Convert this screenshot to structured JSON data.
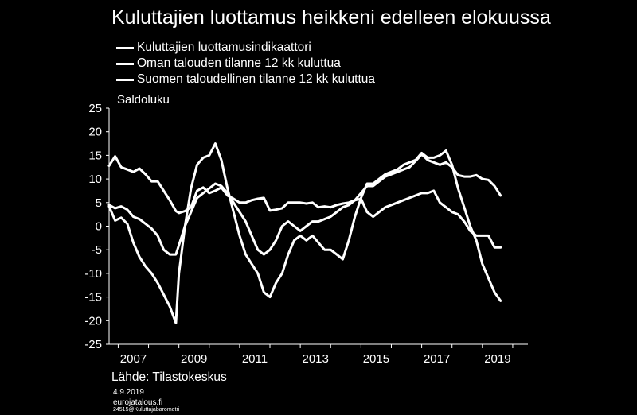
{
  "header": {
    "title": "Kuluttajien luottamus heikkeni edelleen elokuussa"
  },
  "footer": {
    "source": "Lähde: Tilastokeskus",
    "date": "4.9.2019",
    "site": "eurojatalous.fi",
    "code": "24515@Kuluttajabarometri"
  },
  "chart_data": {
    "type": "line",
    "title": "Kuluttajien luottamus heikkeni edelleen elokuussa",
    "ylabel": "Saldoluku",
    "xlabel": "",
    "ylim": [
      -25,
      25
    ],
    "xlim": [
      2006.7,
      2020.5
    ],
    "yticks": [
      "25",
      "20",
      "15",
      "10",
      "5",
      "0",
      "-5",
      "-10",
      "-15",
      "-20",
      "-25"
    ],
    "xticks": [
      "2007",
      "2009",
      "2011",
      "2013",
      "2015",
      "2017",
      "2019"
    ],
    "grid": false,
    "legend_position": "top-left",
    "series": [
      {
        "name": "Kuluttajien luottamusindikaattori",
        "x": [
          2006.7,
          2006.9,
          2007.1,
          2007.3,
          2007.5,
          2007.7,
          2007.9,
          2008.1,
          2008.3,
          2008.5,
          2008.7,
          2008.9,
          2009.0,
          2009.2,
          2009.4,
          2009.6,
          2009.8,
          2010.0,
          2010.2,
          2010.4,
          2010.6,
          2010.8,
          2011.0,
          2011.2,
          2011.4,
          2011.6,
          2011.8,
          2012.0,
          2012.2,
          2012.4,
          2012.6,
          2012.8,
          2013.0,
          2013.2,
          2013.4,
          2013.6,
          2013.8,
          2014.0,
          2014.2,
          2014.4,
          2014.6,
          2014.8,
          2015.0,
          2015.2,
          2015.4,
          2015.6,
          2015.8,
          2016.0,
          2016.2,
          2016.4,
          2016.6,
          2016.8,
          2017.0,
          2017.2,
          2017.4,
          2017.6,
          2017.8,
          2018.0,
          2018.2,
          2018.4,
          2018.6,
          2018.8,
          2019.0,
          2019.2,
          2019.4,
          2019.6
        ],
        "values": [
          12.8,
          14.8,
          12.5,
          12,
          11.5,
          12.2,
          11,
          9.5,
          9.5,
          7.5,
          5.5,
          3.2,
          2.8,
          3.2,
          4,
          7.5,
          8.2,
          7,
          7.5,
          8.2,
          6.5,
          5.8,
          5,
          5,
          5.5,
          5.8,
          6,
          3.3,
          3.5,
          3.8,
          5,
          5,
          5,
          4.8,
          5,
          4,
          4.2,
          4,
          4.5,
          4.8,
          5,
          5.5,
          7,
          8.5,
          8.5,
          9.5,
          10.5,
          11,
          11.5,
          12,
          12.5,
          13.8,
          15.2,
          14,
          13.5,
          13,
          13.5,
          12.5,
          10.8,
          10.5,
          10.5,
          10.8,
          10,
          9.8,
          8.5,
          6.5
        ]
      },
      {
        "name": "Oman talouden tilanne 12 kk kuluttua",
        "x": [
          2006.7,
          2006.9,
          2007.1,
          2007.3,
          2007.5,
          2007.7,
          2007.9,
          2008.1,
          2008.3,
          2008.5,
          2008.7,
          2008.9,
          2009.0,
          2009.2,
          2009.4,
          2009.6,
          2009.8,
          2010.0,
          2010.2,
          2010.4,
          2010.6,
          2010.8,
          2011.0,
          2011.2,
          2011.4,
          2011.6,
          2011.8,
          2012.0,
          2012.2,
          2012.4,
          2012.6,
          2012.8,
          2013.0,
          2013.2,
          2013.4,
          2013.6,
          2013.8,
          2014.0,
          2014.2,
          2014.4,
          2014.6,
          2014.8,
          2015.0,
          2015.2,
          2015.4,
          2015.6,
          2015.8,
          2016.0,
          2016.2,
          2016.4,
          2016.6,
          2016.8,
          2017.0,
          2017.2,
          2017.4,
          2017.6,
          2017.8,
          2018.0,
          2018.2,
          2018.4,
          2018.6,
          2018.8,
          2019.0,
          2019.2,
          2019.4,
          2019.6
        ],
        "values": [
          4.5,
          3.8,
          4.2,
          3.5,
          2,
          1.5,
          0.5,
          -0.5,
          -2,
          -5,
          -6,
          -6,
          -4,
          0,
          3,
          6,
          7,
          8,
          9,
          8.5,
          7,
          5,
          3,
          1,
          -2,
          -5,
          -6,
          -5,
          -3,
          0,
          1,
          0,
          -1,
          0,
          1,
          1,
          1.5,
          2,
          3,
          4,
          4.5,
          5.5,
          5.8,
          3,
          2,
          3,
          4,
          4.5,
          5,
          5.5,
          6,
          6.5,
          7,
          7,
          7.5,
          5,
          4,
          3,
          2.5,
          1,
          -1,
          -2,
          -2,
          -2,
          -4.5,
          -4.5
        ]
      },
      {
        "name": "Suomen taloudellinen tilanne 12 kk kuluttua",
        "x": [
          2006.7,
          2006.9,
          2007.1,
          2007.3,
          2007.5,
          2007.7,
          2007.9,
          2008.1,
          2008.3,
          2008.5,
          2008.7,
          2008.9,
          2009.0,
          2009.2,
          2009.4,
          2009.6,
          2009.8,
          2010.0,
          2010.2,
          2010.4,
          2010.6,
          2010.8,
          2011.0,
          2011.2,
          2011.4,
          2011.6,
          2011.8,
          2012.0,
          2012.2,
          2012.4,
          2012.6,
          2012.8,
          2013.0,
          2013.2,
          2013.4,
          2013.6,
          2013.8,
          2014.0,
          2014.2,
          2014.4,
          2014.6,
          2014.8,
          2015.0,
          2015.2,
          2015.4,
          2015.6,
          2015.8,
          2016.0,
          2016.2,
          2016.4,
          2016.6,
          2016.8,
          2017.0,
          2017.2,
          2017.4,
          2017.6,
          2017.8,
          2018.0,
          2018.2,
          2018.4,
          2018.6,
          2018.8,
          2019.0,
          2019.2,
          2019.4,
          2019.6
        ],
        "values": [
          4.2,
          1.2,
          1.8,
          0.5,
          -3.5,
          -6.5,
          -8.5,
          -10,
          -12,
          -14.5,
          -17,
          -20.5,
          -10,
          0,
          8,
          13,
          14.5,
          15,
          17.5,
          14,
          8,
          3,
          -2,
          -6,
          -8,
          -10,
          -14,
          -15,
          -12,
          -10,
          -6,
          -3,
          -2,
          -3,
          -2,
          -3.5,
          -5,
          -5,
          -6,
          -7,
          -3,
          2,
          6,
          9,
          9,
          10,
          11,
          11.5,
          12,
          13,
          13.5,
          14,
          15.5,
          14.5,
          14.5,
          15,
          16,
          13,
          8,
          4,
          0,
          -3,
          -8,
          -11,
          -14,
          -15.8
        ]
      }
    ]
  }
}
